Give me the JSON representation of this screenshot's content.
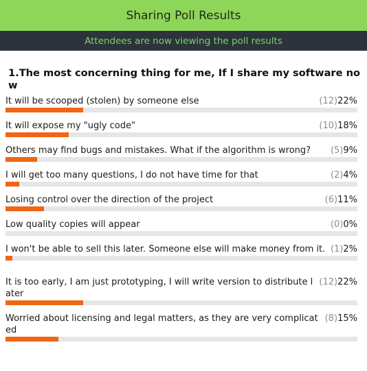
{
  "window": {
    "title": "Sharing Poll Results",
    "status": "Attendees are now viewing the poll results"
  },
  "question": {
    "text": "1.The most concerning thing for me, If I share my software now"
  },
  "options": [
    {
      "text": "It will be scooped (stolen) by someone else",
      "count": "(12)",
      "percent": "22%",
      "value": 22
    },
    {
      "text": "It will expose my \"ugly code\"",
      "count": "(10)",
      "percent": "18%",
      "value": 18
    },
    {
      "text": "Others may find bugs and mistakes. What if the algorithm is wrong?",
      "count": "(5)",
      "percent": "9%",
      "value": 9
    },
    {
      "text": "I will get too many questions, I do not have time for that",
      "count": "(2)",
      "percent": "4%",
      "value": 4
    },
    {
      "text": "Losing control over the direction of the project",
      "count": "(6)",
      "percent": "11%",
      "value": 11
    },
    {
      "text": "Low quality copies will appear",
      "count": "(0)",
      "percent": "0%",
      "value": 0
    },
    {
      "text": "I won't be able to sell this later. Someone else will make money from it.",
      "count": "(1)",
      "percent": "2%",
      "value": 2
    },
    {
      "text": "It is too early, I am just prototyping, I will write version to distribute later",
      "count": "(12)",
      "percent": "22%",
      "value": 22
    },
    {
      "text": "Worried about licensing and legal matters, as they are very complicated",
      "count": "(8)",
      "percent": "15%",
      "value": 15
    }
  ],
  "colors": {
    "title_bg": "#8ed65a",
    "status_bg": "#2c333a",
    "status_text": "#79d46a",
    "bar_fill": "#ef6614",
    "bar_track": "#e6e6e6"
  }
}
